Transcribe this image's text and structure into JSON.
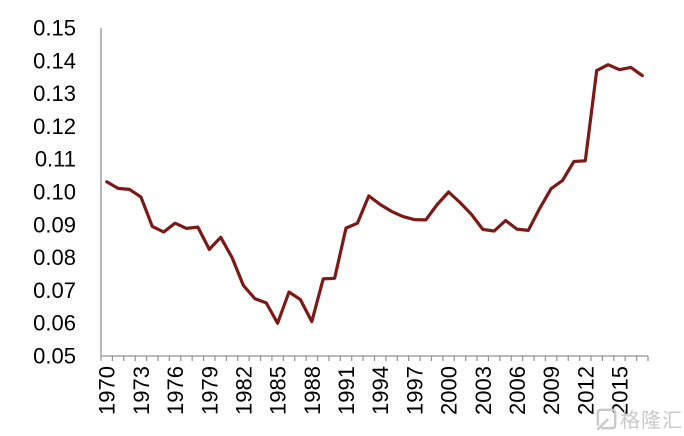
{
  "chart_data": {
    "type": "line",
    "title": "",
    "x": [
      1970,
      1971,
      1972,
      1973,
      1974,
      1975,
      1976,
      1977,
      1978,
      1979,
      1980,
      1981,
      1982,
      1983,
      1984,
      1985,
      1986,
      1987,
      1988,
      1989,
      1990,
      1991,
      1992,
      1993,
      1994,
      1995,
      1996,
      1997,
      1998,
      1999,
      2000,
      2001,
      2002,
      2003,
      2004,
      2005,
      2006,
      2007,
      2008,
      2009,
      2010,
      2011,
      2012,
      2013,
      2014,
      2015,
      2016,
      2017
    ],
    "values": [
      0.1031,
      0.1011,
      0.1008,
      0.0985,
      0.0895,
      0.0878,
      0.0905,
      0.0889,
      0.0893,
      0.0825,
      0.0862,
      0.08,
      0.0715,
      0.0675,
      0.0662,
      0.06,
      0.0695,
      0.0672,
      0.0605,
      0.0735,
      0.0737,
      0.089,
      0.0905,
      0.0988,
      0.0962,
      0.0941,
      0.0925,
      0.0916,
      0.0915,
      0.0962,
      0.1,
      0.0968,
      0.0932,
      0.0886,
      0.0881,
      0.0913,
      0.0887,
      0.0883,
      0.095,
      0.101,
      0.1035,
      0.1093,
      0.1095,
      0.137,
      0.1388,
      0.1373,
      0.138,
      0.1355
    ],
    "xlabel": "",
    "ylabel": "",
    "ylim": [
      0.05,
      0.15
    ],
    "ytick_step": 0.01,
    "ytick_labels": [
      "0.15",
      "0.14",
      "0.13",
      "0.12",
      "0.11",
      "0.10",
      "0.09",
      "0.08",
      "0.07",
      "0.06",
      "0.05"
    ],
    "xtick_labels": [
      "1970",
      "1973",
      "1976",
      "1979",
      "1982",
      "1985",
      "1988",
      "1991",
      "1994",
      "1997",
      "2000",
      "2003",
      "2006",
      "2009",
      "2012",
      "2015"
    ],
    "grid": false,
    "legend": "none",
    "line_color": "#7B1A16",
    "axis_color": "#919191",
    "text_color": "#000000"
  },
  "watermark": {
    "text": "格隆汇",
    "color": "#c9c9c9"
  }
}
